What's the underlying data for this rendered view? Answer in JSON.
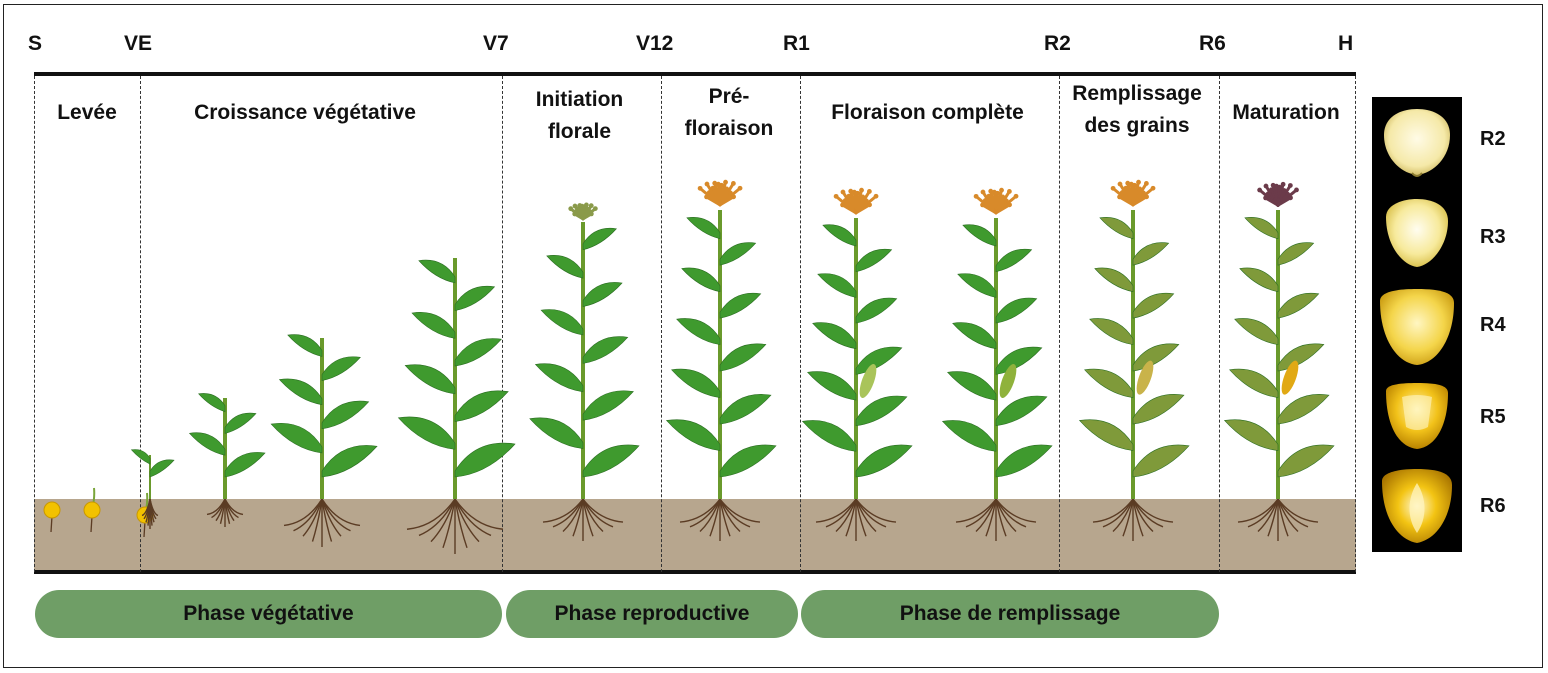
{
  "stage_codes": [
    "S",
    "VE",
    "V7",
    "V12",
    "R1",
    "R2",
    "R6",
    "H"
  ],
  "columns": [
    {
      "label": "Levée"
    },
    {
      "label": "Croissance végétative"
    },
    {
      "label": "Initiation\nflorale"
    },
    {
      "label": "Pré-\nfloraison"
    },
    {
      "label": "Floraison complète"
    },
    {
      "label": "Remplissage\ndes grains"
    },
    {
      "label": "Maturation"
    }
  ],
  "phases": [
    "Phase végétative",
    "Phase reproductive",
    "Phase de remplissage"
  ],
  "kernel_stages": [
    "R2",
    "R3",
    "R4",
    "R5",
    "R6"
  ],
  "colors": {
    "phase_green": "#6f9e66",
    "soil": "#b7a68e",
    "leaf_green": "#3f9a2e",
    "leaf_olive": "#7f9a3a",
    "tassel_orange": "#d88a2a",
    "tassel_purple": "#6b3b4a",
    "seed_yellow": "#f2c200"
  }
}
